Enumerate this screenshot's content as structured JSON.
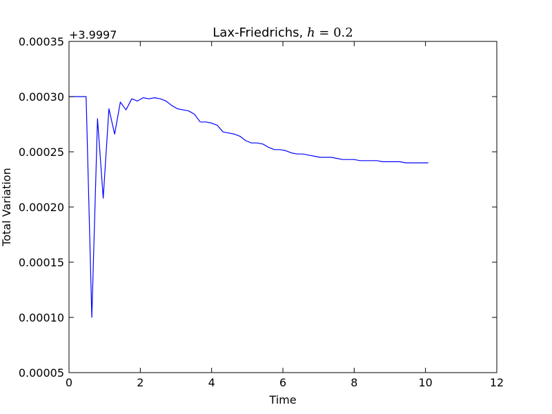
{
  "chart_data": {
    "type": "line",
    "title_prefix": "Lax-Friedrichs, ",
    "title_math_var": "h",
    "title_math_rest": " = 0.2",
    "xlabel": "Time",
    "ylabel": "Total Variation",
    "y_offset_label": "+3.9997",
    "xlim": [
      0,
      12
    ],
    "ylim": [
      5e-05,
      0.00035
    ],
    "x_ticks": [
      0,
      2,
      4,
      6,
      8,
      10,
      12
    ],
    "x_tick_labels": [
      "0",
      "2",
      "4",
      "6",
      "8",
      "10",
      "12"
    ],
    "y_ticks": [
      5e-05,
      0.0001,
      0.00015,
      0.0002,
      0.00025,
      0.0003,
      0.00035
    ],
    "y_tick_labels": [
      "0.00005",
      "0.00010",
      "0.00015",
      "0.00020",
      "0.00025",
      "0.00030",
      "0.00035"
    ],
    "grid": false,
    "series": [
      {
        "color": "#0000ff",
        "x": [
          0.0,
          0.16,
          0.32,
          0.48,
          0.64,
          0.8,
          0.96,
          1.12,
          1.28,
          1.44,
          1.6,
          1.76,
          1.92,
          2.08,
          2.24,
          2.4,
          2.56,
          2.72,
          2.88,
          3.04,
          3.2,
          3.36,
          3.52,
          3.68,
          3.84,
          4.0,
          4.16,
          4.32,
          4.48,
          4.64,
          4.8,
          4.96,
          5.12,
          5.28,
          5.44,
          5.6,
          5.76,
          5.92,
          6.08,
          6.24,
          6.4,
          6.56,
          6.72,
          6.88,
          7.04,
          7.2,
          7.36,
          7.52,
          7.68,
          7.84,
          8.0,
          8.16,
          8.32,
          8.48,
          8.64,
          8.8,
          8.96,
          9.12,
          9.28,
          9.44,
          9.6,
          9.76,
          9.92,
          10.08
        ],
        "y": [
          0.0003,
          0.0003,
          0.0003,
          0.0003,
          0.0001,
          0.00028,
          0.000208,
          0.000289,
          0.000266,
          0.000295,
          0.000288,
          0.000298,
          0.000296,
          0.000299,
          0.000298,
          0.000299,
          0.000298,
          0.000296,
          0.000292,
          0.000289,
          0.000288,
          0.000287,
          0.000284,
          0.000277,
          0.000277,
          0.000276,
          0.000274,
          0.000268,
          0.000267,
          0.000266,
          0.000264,
          0.00026,
          0.000258,
          0.000258,
          0.000257,
          0.000254,
          0.000252,
          0.000252,
          0.000251,
          0.000249,
          0.000248,
          0.000248,
          0.000247,
          0.000246,
          0.000245,
          0.000245,
          0.000245,
          0.000244,
          0.000243,
          0.000243,
          0.000243,
          0.000242,
          0.000242,
          0.000242,
          0.000242,
          0.000241,
          0.000241,
          0.000241,
          0.000241,
          0.00024,
          0.00024,
          0.00024,
          0.00024,
          0.00024
        ]
      }
    ]
  }
}
